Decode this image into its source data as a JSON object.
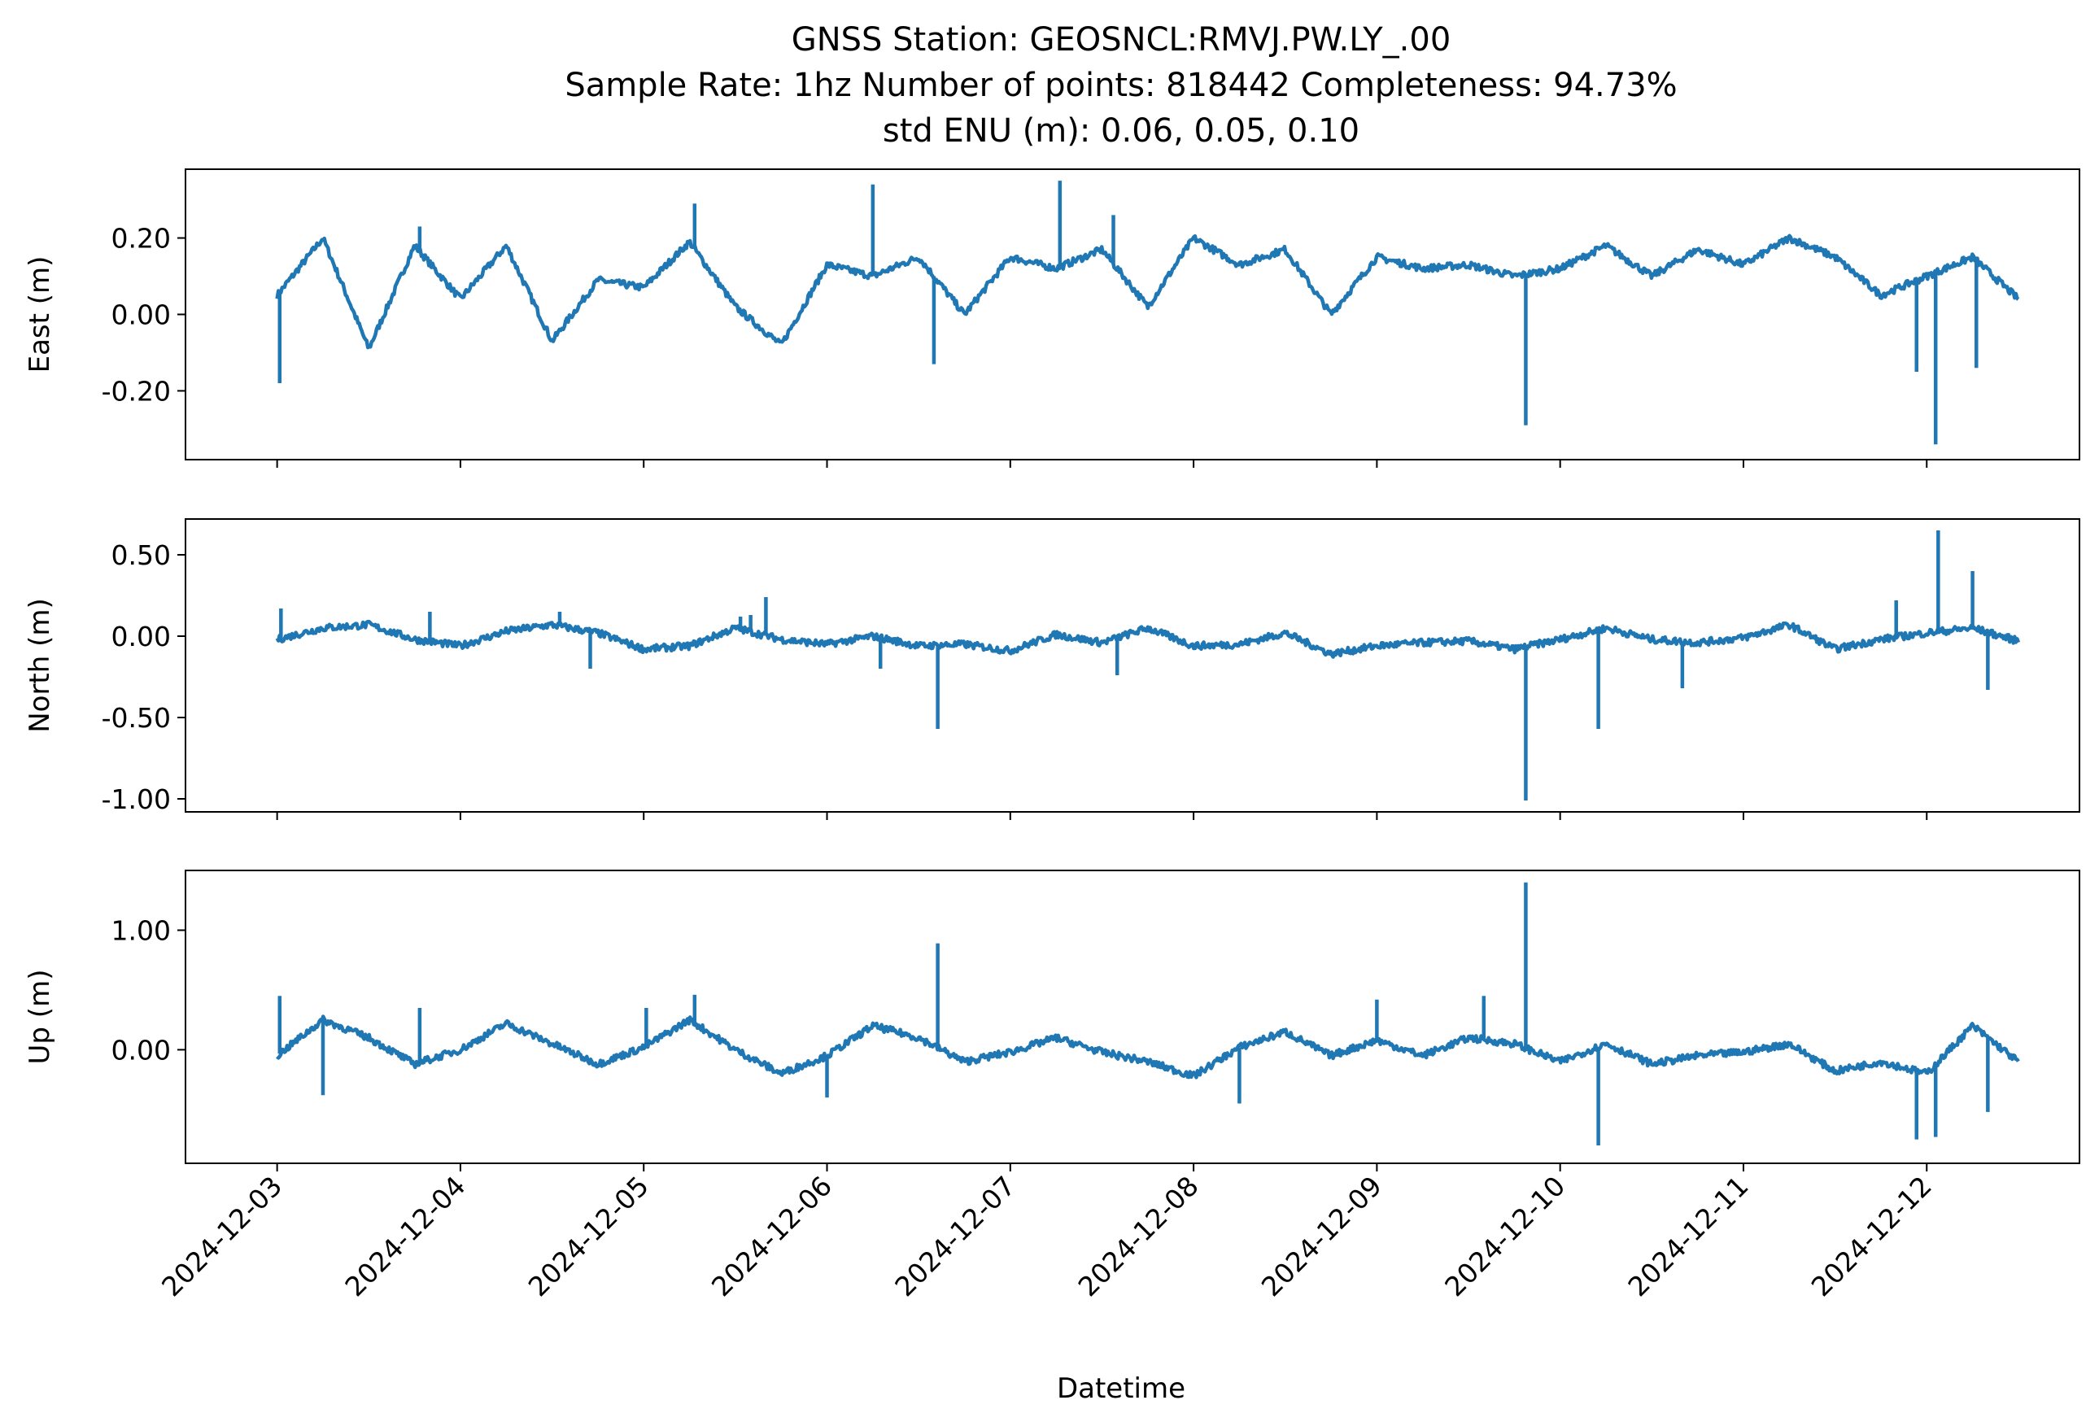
{
  "chart_data": {
    "type": "line",
    "title": [
      "GNSS Station: GEOSNCL:RMVJ.PW.LY_.00",
      "Sample Rate: 1hz   Number of points: 818442    Completeness:  94.73%",
      "std ENU (m):  0.06, 0.05, 0.10"
    ],
    "xlabel": "Datetime",
    "x_ticks": [
      "2024-12-03",
      "2024-12-04",
      "2024-12-05",
      "2024-12-06",
      "2024-12-07",
      "2024-12-08",
      "2024-12-09",
      "2024-12-10",
      "2024-12-11",
      "2024-12-12"
    ],
    "xlim": [
      "2024-12-02T12:00",
      "2024-12-12T20:00"
    ],
    "color": "#1f77b4",
    "grid": false,
    "panels": [
      {
        "ylabel": "East (m)",
        "ylim": [
          -0.38,
          0.38
        ],
        "y_ticks": [
          0.2,
          0.0,
          -0.2
        ],
        "y_tick_labels": [
          "0.20",
          "0.00",
          "-0.20"
        ],
        "x": [
          "2024-12-03T00:00",
          "2024-12-03T06:00",
          "2024-12-03T12:00",
          "2024-12-03T18:00",
          "2024-12-04T00:00",
          "2024-12-04T06:00",
          "2024-12-04T12:00",
          "2024-12-04T18:00",
          "2024-12-05T00:00",
          "2024-12-05T06:00",
          "2024-12-05T12:00",
          "2024-12-05T18:00",
          "2024-12-06T00:00",
          "2024-12-06T06:00",
          "2024-12-06T12:00",
          "2024-12-06T18:00",
          "2024-12-07T00:00",
          "2024-12-07T06:00",
          "2024-12-07T12:00",
          "2024-12-07T18:00",
          "2024-12-08T00:00",
          "2024-12-08T06:00",
          "2024-12-08T12:00",
          "2024-12-08T18:00",
          "2024-12-09T00:00",
          "2024-12-09T06:00",
          "2024-12-09T12:00",
          "2024-12-09T18:00",
          "2024-12-10T00:00",
          "2024-12-10T06:00",
          "2024-12-10T12:00",
          "2024-12-10T18:00",
          "2024-12-11T00:00",
          "2024-12-11T06:00",
          "2024-12-11T12:00",
          "2024-12-11T18:00",
          "2024-12-12T00:00",
          "2024-12-12T06:00",
          "2024-12-12T12:00"
        ],
        "values": [
          0.05,
          0.2,
          -0.09,
          0.18,
          0.04,
          0.18,
          -0.07,
          0.09,
          0.07,
          0.19,
          0.02,
          -0.08,
          0.13,
          0.1,
          0.15,
          0.0,
          0.15,
          0.12,
          0.17,
          0.02,
          0.2,
          0.13,
          0.17,
          0.0,
          0.15,
          0.12,
          0.13,
          0.1,
          0.12,
          0.18,
          0.1,
          0.17,
          0.13,
          0.2,
          0.15,
          0.05,
          0.1,
          0.15,
          0.04
        ],
        "spikes": [
          [
            "2024-12-03T00:20",
            -0.18
          ],
          [
            "2024-12-03T18:40",
            0.23
          ],
          [
            "2024-12-04T20:00",
            0.08
          ],
          [
            "2024-12-05T06:40",
            0.29
          ],
          [
            "2024-12-06T06:00",
            0.34
          ],
          [
            "2024-12-06T14:00",
            -0.13
          ],
          [
            "2024-12-07T06:30",
            0.35
          ],
          [
            "2024-12-07T13:30",
            0.26
          ],
          [
            "2024-12-09T19:30",
            -0.29
          ],
          [
            "2024-12-11T22:40",
            -0.15
          ],
          [
            "2024-12-12T01:10",
            -0.34
          ],
          [
            "2024-12-12T06:30",
            -0.14
          ]
        ]
      },
      {
        "ylabel": "North (m)",
        "ylim": [
          -1.08,
          0.72
        ],
        "y_ticks": [
          0.5,
          0.0,
          -0.5,
          -1.0
        ],
        "y_tick_labels": [
          "0.50",
          "0.00",
          "-0.50",
          "-1.00"
        ],
        "x": [
          "2024-12-03T00:00",
          "2024-12-03T06:00",
          "2024-12-03T12:00",
          "2024-12-03T18:00",
          "2024-12-04T00:00",
          "2024-12-04T06:00",
          "2024-12-04T12:00",
          "2024-12-04T18:00",
          "2024-12-05T00:00",
          "2024-12-05T06:00",
          "2024-12-05T12:00",
          "2024-12-05T18:00",
          "2024-12-06T00:00",
          "2024-12-06T06:00",
          "2024-12-06T12:00",
          "2024-12-06T18:00",
          "2024-12-07T00:00",
          "2024-12-07T06:00",
          "2024-12-07T12:00",
          "2024-12-07T18:00",
          "2024-12-08T00:00",
          "2024-12-08T06:00",
          "2024-12-08T12:00",
          "2024-12-08T18:00",
          "2024-12-09T00:00",
          "2024-12-09T06:00",
          "2024-12-09T12:00",
          "2024-12-09T18:00",
          "2024-12-10T00:00",
          "2024-12-10T06:00",
          "2024-12-10T12:00",
          "2024-12-10T18:00",
          "2024-12-11T00:00",
          "2024-12-11T06:00",
          "2024-12-11T12:00",
          "2024-12-11T18:00",
          "2024-12-12T00:00",
          "2024-12-12T06:00",
          "2024-12-12T12:00"
        ],
        "values": [
          -0.02,
          0.05,
          0.07,
          -0.02,
          -0.06,
          0.03,
          0.07,
          0.02,
          -0.08,
          -0.06,
          0.05,
          -0.02,
          -0.05,
          0.0,
          -0.06,
          -0.05,
          -0.09,
          0.01,
          -0.04,
          0.05,
          -0.06,
          -0.05,
          0.02,
          -0.11,
          -0.06,
          -0.04,
          -0.03,
          -0.08,
          -0.02,
          0.05,
          -0.02,
          -0.04,
          -0.01,
          0.07,
          -0.08,
          -0.02,
          0.02,
          0.05,
          -0.03
        ],
        "spikes": [
          [
            "2024-12-03T00:30",
            0.17
          ],
          [
            "2024-12-03T20:00",
            0.15
          ],
          [
            "2024-12-04T13:00",
            0.15
          ],
          [
            "2024-12-04T17:00",
            -0.2
          ],
          [
            "2024-12-05T12:40",
            0.12
          ],
          [
            "2024-12-05T14:00",
            0.13
          ],
          [
            "2024-12-05T16:00",
            0.24
          ],
          [
            "2024-12-06T07:00",
            -0.2
          ],
          [
            "2024-12-06T14:30",
            -0.57
          ],
          [
            "2024-12-07T14:00",
            -0.24
          ],
          [
            "2024-12-09T19:30",
            -1.01
          ],
          [
            "2024-12-10T05:00",
            -0.57
          ],
          [
            "2024-12-10T16:00",
            -0.32
          ],
          [
            "2024-12-11T20:00",
            0.22
          ],
          [
            "2024-12-12T01:30",
            0.65
          ],
          [
            "2024-12-12T08:00",
            -0.33
          ],
          [
            "2024-12-12T06:00",
            0.4
          ]
        ]
      },
      {
        "ylabel": "Up (m)",
        "ylim": [
          -0.95,
          1.5
        ],
        "y_ticks": [
          1.0,
          0.0
        ],
        "y_tick_labels": [
          "1.00",
          "0.00"
        ],
        "x": [
          "2024-12-03T00:00",
          "2024-12-03T06:00",
          "2024-12-03T12:00",
          "2024-12-03T18:00",
          "2024-12-04T00:00",
          "2024-12-04T06:00",
          "2024-12-04T12:00",
          "2024-12-04T18:00",
          "2024-12-05T00:00",
          "2024-12-05T06:00",
          "2024-12-05T12:00",
          "2024-12-05T18:00",
          "2024-12-06T00:00",
          "2024-12-06T06:00",
          "2024-12-06T12:00",
          "2024-12-06T18:00",
          "2024-12-07T00:00",
          "2024-12-07T06:00",
          "2024-12-07T12:00",
          "2024-12-07T18:00",
          "2024-12-08T00:00",
          "2024-12-08T06:00",
          "2024-12-08T12:00",
          "2024-12-08T18:00",
          "2024-12-09T00:00",
          "2024-12-09T06:00",
          "2024-12-09T12:00",
          "2024-12-09T18:00",
          "2024-12-10T00:00",
          "2024-12-10T06:00",
          "2024-12-10T12:00",
          "2024-12-10T18:00",
          "2024-12-11T00:00",
          "2024-12-11T06:00",
          "2024-12-11T12:00",
          "2024-12-11T18:00",
          "2024-12-12T00:00",
          "2024-12-12T06:00",
          "2024-12-12T12:00"
        ],
        "values": [
          -0.05,
          0.25,
          0.1,
          -0.12,
          0.0,
          0.22,
          0.05,
          -0.12,
          0.02,
          0.25,
          0.0,
          -0.2,
          -0.05,
          0.2,
          0.1,
          -0.1,
          -0.02,
          0.1,
          -0.02,
          -0.1,
          -0.22,
          0.02,
          0.15,
          -0.05,
          0.08,
          -0.05,
          0.1,
          0.05,
          -0.1,
          0.05,
          -0.12,
          -0.05,
          -0.02,
          0.05,
          -0.18,
          -0.1,
          -0.2,
          0.2,
          -0.1
        ],
        "spikes": [
          [
            "2024-12-03T00:20",
            0.45
          ],
          [
            "2024-12-03T06:00",
            -0.38
          ],
          [
            "2024-12-03T18:40",
            0.35
          ],
          [
            "2024-12-05T00:20",
            0.35
          ],
          [
            "2024-12-05T06:40",
            0.46
          ],
          [
            "2024-12-06T00:00",
            -0.4
          ],
          [
            "2024-12-06T14:30",
            0.89
          ],
          [
            "2024-12-08T06:00",
            -0.45
          ],
          [
            "2024-12-09T00:00",
            0.42
          ],
          [
            "2024-12-09T14:00",
            0.45
          ],
          [
            "2024-12-09T19:30",
            1.4
          ],
          [
            "2024-12-10T05:00",
            -0.8
          ],
          [
            "2024-12-11T22:40",
            -0.75
          ],
          [
            "2024-12-12T01:10",
            -0.73
          ],
          [
            "2024-12-12T08:00",
            -0.52
          ]
        ]
      }
    ]
  }
}
